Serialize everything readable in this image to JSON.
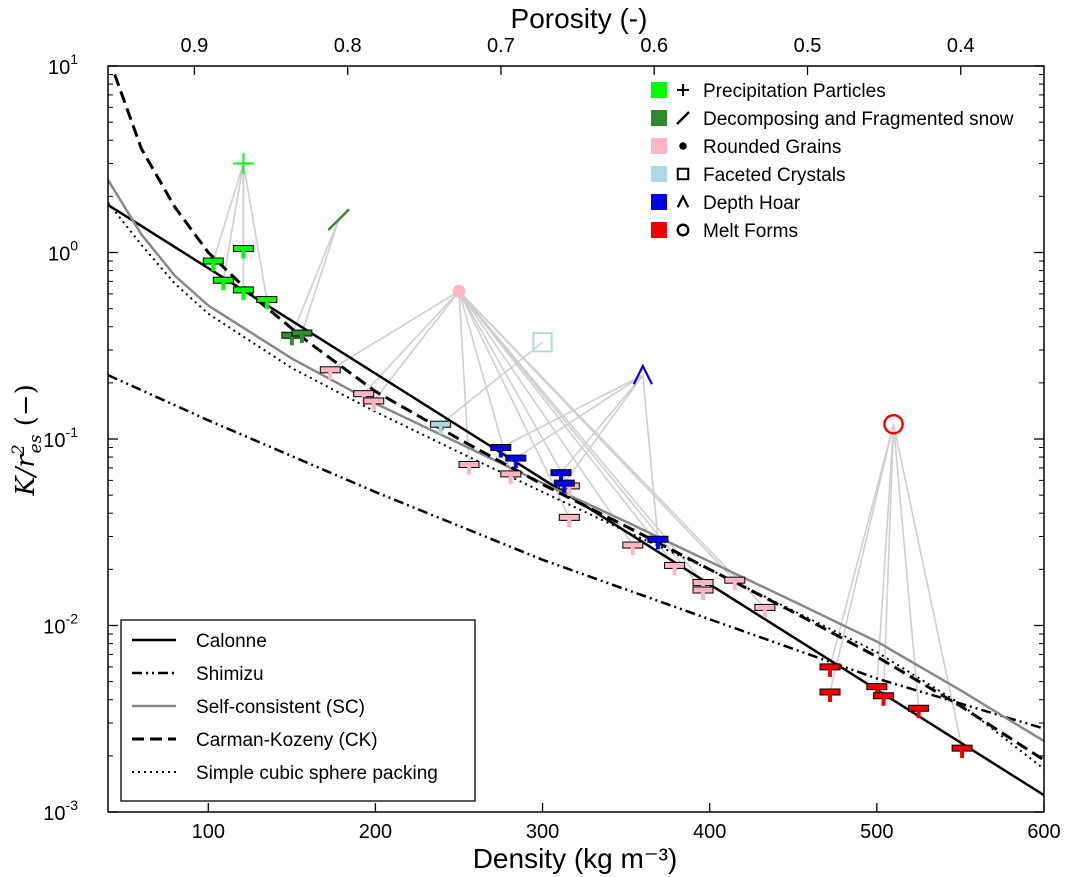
{
  "chart_data": {
    "type": "scatter",
    "title": "",
    "top_axis": {
      "label": "Porosity (-)",
      "ticks": [
        0.9,
        0.8,
        0.7,
        0.6,
        0.5,
        0.4
      ],
      "tick_labels": [
        "0.9",
        "0.8",
        "0.7",
        "0.6",
        "0.5",
        "0.4"
      ]
    },
    "xlabel": "Density (kg m⁻³)",
    "ylabel": "K/r²es (−)",
    "ylabel_parts": {
      "base": "K/r",
      "sup": "2",
      "sub": "es",
      "tail": " (−)"
    },
    "xlim": [
      40,
      600
    ],
    "ylim": [
      0.001,
      10
    ],
    "yscale": "log",
    "x_ticks": [
      100,
      200,
      300,
      400,
      500,
      600
    ],
    "x_tick_labels": [
      "100",
      "200",
      "300",
      "400",
      "500",
      "600"
    ],
    "y_ticks": [
      {
        "value": 0.001,
        "base": "10",
        "exp": "-3"
      },
      {
        "value": 0.01,
        "base": "10",
        "exp": "-2"
      },
      {
        "value": 0.1,
        "base": "10",
        "exp": "-1"
      },
      {
        "value": 1,
        "base": "10",
        "exp": "0"
      },
      {
        "value": 10,
        "base": "10",
        "exp": "1"
      }
    ],
    "grid": false,
    "lines": [
      {
        "name": "Calonne",
        "style": "solid",
        "color": "#000000",
        "points": [
          [
            40,
            1.8
          ],
          [
            600,
            0.00123
          ]
        ]
      },
      {
        "name": "Shimizu",
        "style": "dashdotdot",
        "color": "#000000",
        "points": [
          [
            40,
            0.22
          ],
          [
            100,
            0.126
          ],
          [
            200,
            0.052
          ],
          [
            300,
            0.0225
          ],
          [
            400,
            0.0108
          ],
          [
            500,
            0.0052
          ],
          [
            600,
            0.0028
          ]
        ]
      },
      {
        "name": "Self-consistent (SC)",
        "style": "solid",
        "color": "#888888",
        "points": [
          [
            40,
            2.45
          ],
          [
            60,
            1.25
          ],
          [
            80,
            0.75
          ],
          [
            100,
            0.52
          ],
          [
            150,
            0.27
          ],
          [
            200,
            0.155
          ],
          [
            250,
            0.095
          ],
          [
            300,
            0.058
          ],
          [
            350,
            0.036
          ],
          [
            400,
            0.022
          ],
          [
            450,
            0.0135
          ],
          [
            500,
            0.0082
          ],
          [
            550,
            0.0045
          ],
          [
            600,
            0.0024
          ]
        ]
      },
      {
        "name": "Carman-Kozeny (CK)",
        "style": "dashed",
        "color": "#000000",
        "points": [
          [
            44,
            9.0
          ],
          [
            60,
            3.6
          ],
          [
            80,
            1.75
          ],
          [
            100,
            1.0
          ],
          [
            130,
            0.55
          ],
          [
            160,
            0.33
          ],
          [
            200,
            0.18
          ],
          [
            250,
            0.1
          ],
          [
            300,
            0.057
          ],
          [
            350,
            0.034
          ],
          [
            400,
            0.02
          ],
          [
            450,
            0.0118
          ],
          [
            500,
            0.0068
          ],
          [
            550,
            0.0037
          ],
          [
            600,
            0.0019
          ]
        ]
      },
      {
        "name": "Simple cubic sphere packing",
        "style": "dotted",
        "color": "#000000",
        "points": [
          [
            40,
            1.85
          ],
          [
            60,
            1.1
          ],
          [
            80,
            0.68
          ],
          [
            100,
            0.47
          ],
          [
            150,
            0.24
          ],
          [
            200,
            0.14
          ],
          [
            250,
            0.085
          ],
          [
            300,
            0.052
          ],
          [
            350,
            0.032
          ],
          [
            400,
            0.02
          ],
          [
            450,
            0.012
          ],
          [
            500,
            0.0072
          ],
          [
            550,
            0.0038
          ],
          [
            600,
            0.0017
          ]
        ]
      }
    ],
    "legend_lines_placement": "bottom-left",
    "legend_classes_placement": "top-right",
    "classes": [
      {
        "name": "Precipitation Particles",
        "symbol": "plus",
        "color": "#00ff00",
        "marker": [
          121,
          3.0
        ],
        "points": [
          [
            103,
            0.9
          ],
          [
            121,
            1.05
          ],
          [
            109,
            0.71
          ],
          [
            121,
            0.63
          ],
          [
            135,
            0.56
          ]
        ]
      },
      {
        "name": "Decomposing and Fragmented snow",
        "symbol": "slash",
        "color": "#2e8b2e",
        "marker": [
          178,
          1.5
        ],
        "points": [
          [
            150,
            0.36
          ],
          [
            156,
            0.37
          ]
        ]
      },
      {
        "name": "Rounded Grains",
        "symbol": "dot",
        "color": "#ffb6c1",
        "marker": [
          250,
          0.62
        ],
        "points": [
          [
            173,
            0.235
          ],
          [
            193,
            0.175
          ],
          [
            199,
            0.16
          ],
          [
            256,
            0.073
          ],
          [
            281,
            0.065
          ],
          [
            316,
            0.056
          ],
          [
            316,
            0.038
          ],
          [
            354,
            0.027
          ],
          [
            379,
            0.021
          ],
          [
            396,
            0.017
          ],
          [
            396,
            0.0155
          ],
          [
            415,
            0.0175
          ],
          [
            433,
            0.0125
          ]
        ]
      },
      {
        "name": "Faceted Crystals",
        "symbol": "square",
        "color": "#add8e6",
        "marker": [
          300,
          0.33
        ],
        "points": [
          [
            239,
            0.12
          ]
        ]
      },
      {
        "name": "Depth Hoar",
        "symbol": "caret",
        "color": "#0000ee",
        "marker": [
          360,
          0.22
        ],
        "points": [
          [
            275,
            0.09
          ],
          [
            284,
            0.079
          ],
          [
            311,
            0.066
          ],
          [
            313,
            0.058
          ],
          [
            369,
            0.029
          ]
        ]
      },
      {
        "name": "Melt Forms",
        "symbol": "circle",
        "color": "#ee0000",
        "marker": [
          510,
          0.12
        ],
        "points": [
          [
            472,
            0.006
          ],
          [
            472,
            0.0044
          ],
          [
            500,
            0.0047
          ],
          [
            504,
            0.0042
          ],
          [
            525,
            0.0036
          ],
          [
            551,
            0.0022
          ]
        ]
      }
    ]
  }
}
